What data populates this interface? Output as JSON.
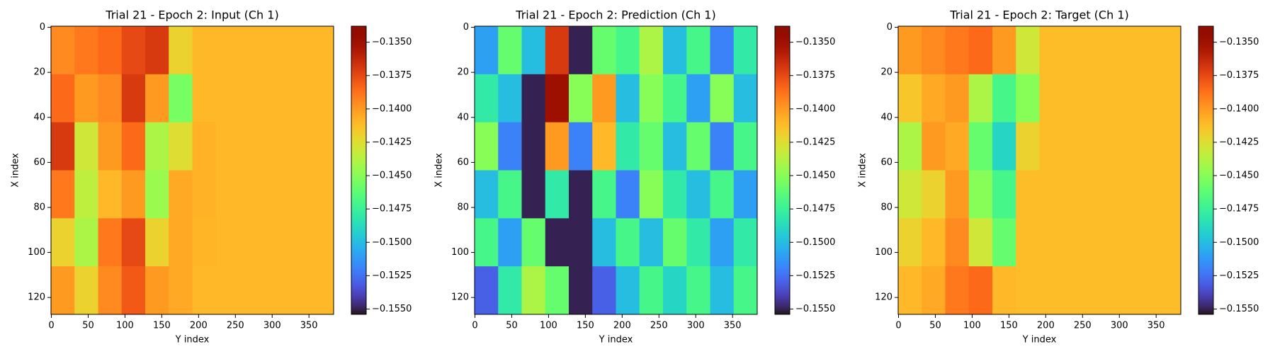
{
  "chart_data": [
    {
      "type": "heatmap",
      "title": "Trial 21 - Epoch 2: Input (Ch 1)",
      "xlabel": "Y index",
      "ylabel": "X index",
      "xlim": [
        -0.5,
        383.5
      ],
      "ylim": [
        127.5,
        -0.5
      ],
      "xticks": [
        0,
        50,
        100,
        150,
        200,
        250,
        300,
        350
      ],
      "yticks": [
        0,
        20,
        40,
        60,
        80,
        100,
        120
      ],
      "colormap": "turbo",
      "clim": [
        -0.1554,
        -0.1338
      ],
      "cticks": [
        {
          "value": -0.135,
          "label": "−0.1350"
        },
        {
          "value": -0.1375,
          "label": "−0.1375"
        },
        {
          "value": -0.14,
          "label": "−0.1400"
        },
        {
          "value": -0.1425,
          "label": "−0.1425"
        },
        {
          "value": -0.145,
          "label": "−0.1450"
        },
        {
          "value": -0.1475,
          "label": "−0.1475"
        },
        {
          "value": -0.15,
          "label": "−0.1500"
        },
        {
          "value": -0.1525,
          "label": "−0.1525"
        },
        {
          "value": -0.155,
          "label": "−0.1550"
        }
      ],
      "values": [
        [
          -0.1395,
          -0.139,
          -0.1385,
          -0.1375,
          -0.137,
          -0.142,
          -0.141,
          -0.141,
          -0.141,
          -0.141,
          -0.141,
          -0.141
        ],
        [
          -0.1385,
          -0.14,
          -0.1395,
          -0.137,
          -0.14,
          -0.1455,
          -0.141,
          -0.141,
          -0.141,
          -0.141,
          -0.141,
          -0.141
        ],
        [
          -0.137,
          -0.143,
          -0.14,
          -0.1385,
          -0.144,
          -0.1425,
          -0.1408,
          -0.141,
          -0.141,
          -0.141,
          -0.141,
          -0.141
        ],
        [
          -0.139,
          -0.1435,
          -0.141,
          -0.14,
          -0.1445,
          -0.1405,
          -0.1408,
          -0.141,
          -0.141,
          -0.141,
          -0.141,
          -0.141
        ],
        [
          -0.142,
          -0.144,
          -0.139,
          -0.1375,
          -0.142,
          -0.1405,
          -0.1409,
          -0.141,
          -0.141,
          -0.141,
          -0.141,
          -0.141
        ],
        [
          -0.14,
          -0.142,
          -0.1395,
          -0.138,
          -0.14,
          -0.1405,
          -0.141,
          -0.141,
          -0.141,
          -0.141,
          -0.141,
          -0.141
        ]
      ]
    },
    {
      "type": "heatmap",
      "title": "Trial 21 - Epoch 2: Prediction (Ch 1)",
      "xlabel": "Y index",
      "ylabel": "X index",
      "xlim": [
        -0.5,
        383.5
      ],
      "ylim": [
        127.5,
        -0.5
      ],
      "xticks": [
        0,
        50,
        100,
        150,
        200,
        250,
        300,
        350
      ],
      "yticks": [
        0,
        20,
        40,
        60,
        80,
        100,
        120
      ],
      "colormap": "turbo",
      "clim": [
        -0.1554,
        -0.1338
      ],
      "cticks": [
        {
          "value": -0.135,
          "label": "−0.1350"
        },
        {
          "value": -0.1375,
          "label": "−0.1375"
        },
        {
          "value": -0.14,
          "label": "−0.1400"
        },
        {
          "value": -0.1425,
          "label": "−0.1425"
        },
        {
          "value": -0.145,
          "label": "−0.1450"
        },
        {
          "value": -0.1475,
          "label": "−0.1475"
        },
        {
          "value": -0.15,
          "label": "−0.1500"
        },
        {
          "value": -0.1525,
          "label": "−0.1525"
        },
        {
          "value": -0.155,
          "label": "−0.1550"
        }
      ],
      "values": [
        [
          -0.151,
          -0.146,
          -0.15,
          -0.137,
          -0.155,
          -0.146,
          -0.147,
          -0.144,
          -0.15,
          -0.147,
          -0.152,
          -0.148
        ],
        [
          -0.148,
          -0.15,
          -0.155,
          -0.135,
          -0.145,
          -0.14,
          -0.15,
          -0.145,
          -0.147,
          -0.151,
          -0.145,
          -0.15
        ],
        [
          -0.145,
          -0.152,
          -0.155,
          -0.14,
          -0.152,
          -0.141,
          -0.148,
          -0.146,
          -0.15,
          -0.146,
          -0.152,
          -0.147
        ],
        [
          -0.15,
          -0.147,
          -0.155,
          -0.148,
          -0.155,
          -0.147,
          -0.152,
          -0.145,
          -0.148,
          -0.15,
          -0.147,
          -0.151
        ],
        [
          -0.147,
          -0.151,
          -0.146,
          -0.155,
          -0.155,
          -0.15,
          -0.147,
          -0.15,
          -0.146,
          -0.148,
          -0.151,
          -0.148
        ],
        [
          -0.153,
          -0.148,
          -0.144,
          -0.146,
          -0.155,
          -0.153,
          -0.15,
          -0.147,
          -0.149,
          -0.147,
          -0.15,
          -0.147
        ]
      ]
    },
    {
      "type": "heatmap",
      "title": "Trial 21 - Epoch 2: Target (Ch 1)",
      "xlabel": "Y index",
      "ylabel": "X index",
      "xlim": [
        -0.5,
        383.5
      ],
      "ylim": [
        127.5,
        -0.5
      ],
      "xticks": [
        0,
        50,
        100,
        150,
        200,
        250,
        300,
        350
      ],
      "yticks": [
        0,
        20,
        40,
        60,
        80,
        100,
        120
      ],
      "colormap": "turbo",
      "clim": [
        -0.1554,
        -0.1338
      ],
      "cticks": [
        {
          "value": -0.135,
          "label": "−0.1350"
        },
        {
          "value": -0.1375,
          "label": "−0.1375"
        },
        {
          "value": -0.14,
          "label": "−0.1400"
        },
        {
          "value": -0.1425,
          "label": "−0.1425"
        },
        {
          "value": -0.145,
          "label": "−0.1450"
        },
        {
          "value": -0.1475,
          "label": "−0.1475"
        },
        {
          "value": -0.15,
          "label": "−0.1500"
        },
        {
          "value": -0.1525,
          "label": "−0.1525"
        },
        {
          "value": -0.155,
          "label": "−0.1550"
        }
      ],
      "values": [
        [
          -0.14,
          -0.1395,
          -0.139,
          -0.1385,
          -0.14,
          -0.143,
          -0.1412,
          -0.1412,
          -0.1412,
          -0.1412,
          -0.1412,
          -0.1412
        ],
        [
          -0.1415,
          -0.1405,
          -0.14,
          -0.144,
          -0.147,
          -0.145,
          -0.1412,
          -0.1412,
          -0.1412,
          -0.1412,
          -0.1412,
          -0.1412
        ],
        [
          -0.144,
          -0.14,
          -0.1405,
          -0.146,
          -0.149,
          -0.142,
          -0.1412,
          -0.1412,
          -0.1412,
          -0.1412,
          -0.1412,
          -0.1412
        ],
        [
          -0.143,
          -0.142,
          -0.14,
          -0.145,
          -0.147,
          -0.1412,
          -0.1412,
          -0.1412,
          -0.1412,
          -0.1412,
          -0.1412,
          -0.1412
        ],
        [
          -0.142,
          -0.141,
          -0.1395,
          -0.143,
          -0.146,
          -0.1412,
          -0.1412,
          -0.1412,
          -0.1412,
          -0.1412,
          -0.1412,
          -0.1412
        ],
        [
          -0.141,
          -0.1405,
          -0.139,
          -0.1385,
          -0.141,
          -0.1412,
          -0.1412,
          -0.1412,
          -0.1412,
          -0.1412,
          -0.1412,
          -0.1412
        ]
      ]
    }
  ]
}
